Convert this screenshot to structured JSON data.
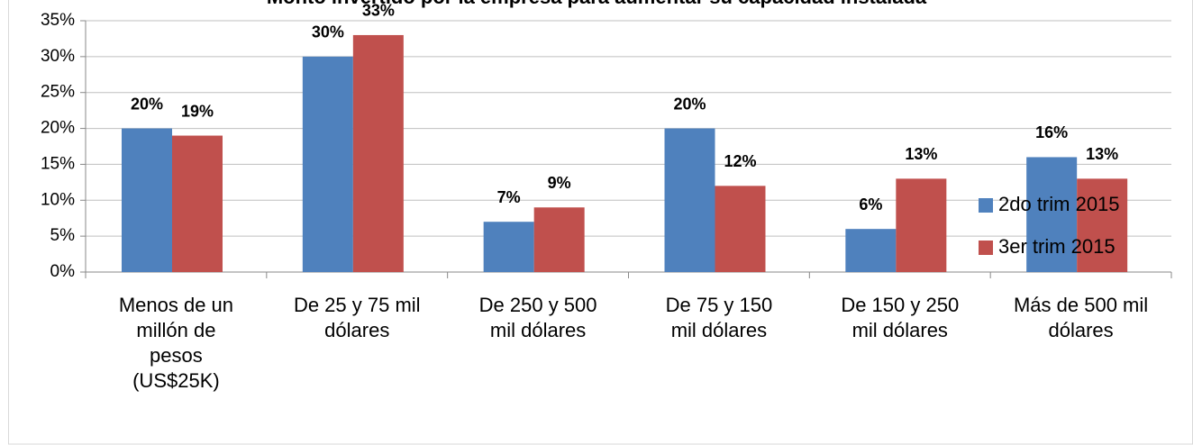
{
  "chart_data": {
    "type": "bar",
    "title": "Monto invertido por la empresa para aumentar su capacidad instalada",
    "categories": [
      "Menos de un\nmillón de\npesos\n(US$25K)",
      "De 25 y 75 mil\ndólares",
      "De 250 y 500\nmil dólares",
      "De 75 y 150\nmil dólares",
      "De 150 y 250\nmil dólares",
      "Más de 500 mil\ndólares"
    ],
    "series": [
      {
        "name": "2do trim 2015",
        "color": "#4f81bd",
        "values": [
          20,
          30,
          7,
          20,
          6,
          16
        ],
        "value_labels": [
          "20%",
          "30%",
          "7%",
          "20%",
          "6%",
          "16%"
        ]
      },
      {
        "name": "3er trim 2015",
        "color": "#c0504d",
        "values": [
          19,
          33,
          9,
          12,
          13,
          13
        ],
        "value_labels": [
          "19%",
          "33%",
          "9%",
          "12%",
          "13%",
          "13%"
        ]
      }
    ],
    "ylim": [
      0,
      35
    ],
    "yticks": [
      {
        "value": 0,
        "label": "0%"
      },
      {
        "value": 5,
        "label": "5%"
      },
      {
        "value": 10,
        "label": "10%"
      },
      {
        "value": 15,
        "label": "15%"
      },
      {
        "value": 20,
        "label": "20%"
      },
      {
        "value": 25,
        "label": "25%"
      },
      {
        "value": 30,
        "label": "30%"
      },
      {
        "value": 35,
        "label": "35%"
      }
    ],
    "grid": true,
    "legend": "right"
  }
}
